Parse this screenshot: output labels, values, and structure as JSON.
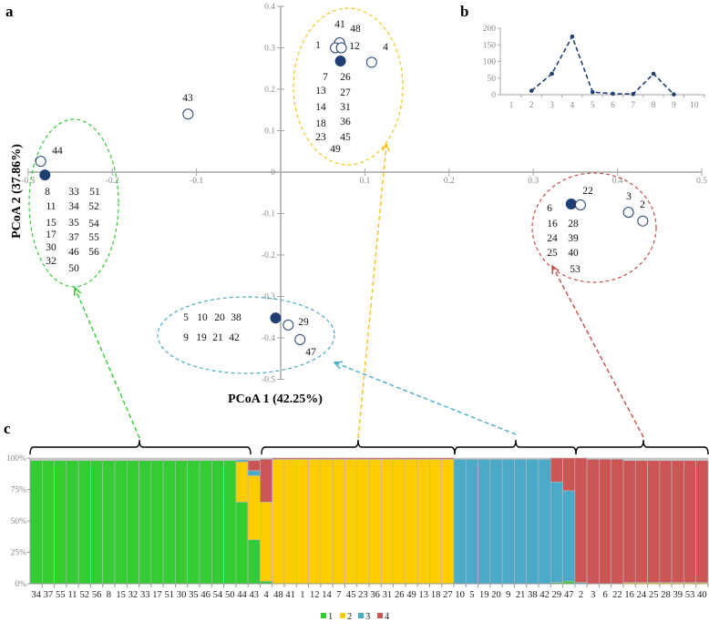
{
  "panel_labels": {
    "a": "a",
    "b": "b",
    "c": "c"
  },
  "colors": {
    "point": "#1f3f73",
    "axis": "#a6a6a6",
    "k1": "#33cc33",
    "k2": "#ffcc00",
    "k3": "#4aaac8",
    "k4": "#cc5555",
    "unassigned": "#c8c8c8",
    "cluster_green": "#33cc33",
    "cluster_yellow": "#f5c518",
    "cluster_red": "#c0504d",
    "cluster_blue": "#4aaac8"
  },
  "chart_data": [
    {
      "type": "scatter",
      "panel": "a",
      "xlabel": "PCoA 1 (42.25%)",
      "ylabel": "PCoA 2 (37.86%)",
      "xlim": [
        -0.3,
        0.5
      ],
      "ylim": [
        -0.5,
        0.4
      ],
      "xticks": [
        "-0.3",
        "-0.2",
        "-0.1",
        "0.1",
        "0.2",
        "0.3",
        "0.4",
        "0.5"
      ],
      "xtick_values": [
        -0.3,
        -0.2,
        -0.1,
        0.1,
        0.2,
        0.3,
        0.4,
        0.5
      ],
      "yticks": [
        "0.4",
        "0.3",
        "0.2",
        "0.1",
        "0",
        "-0.1",
        "-0.2",
        "-0.3",
        "-0.4",
        "-0.5"
      ],
      "ytick_values": [
        0.4,
        0.3,
        0.2,
        0.1,
        0,
        -0.1,
        -0.2,
        -0.3,
        -0.4,
        -0.5
      ],
      "points": [
        {
          "x": -0.285,
          "y": 0.026,
          "filled": false
        },
        {
          "x": -0.28,
          "y": -0.007,
          "filled": true
        },
        {
          "x": -0.11,
          "y": 0.14,
          "filled": false
        },
        {
          "x": 0.07,
          "y": 0.312,
          "filled": false
        },
        {
          "x": 0.065,
          "y": 0.3,
          "filled": false
        },
        {
          "x": 0.072,
          "y": 0.3,
          "filled": false
        },
        {
          "x": 0.071,
          "y": 0.268,
          "filled": true
        },
        {
          "x": 0.108,
          "y": 0.265,
          "filled": false
        },
        {
          "x": 0.345,
          "y": -0.077,
          "filled": true
        },
        {
          "x": 0.356,
          "y": -0.079,
          "filled": false
        },
        {
          "x": 0.413,
          "y": -0.097,
          "filled": false
        },
        {
          "x": 0.43,
          "y": -0.118,
          "filled": false
        },
        {
          "x": -0.006,
          "y": -0.352,
          "filled": true
        },
        {
          "x": 0.009,
          "y": -0.369,
          "filled": false
        },
        {
          "x": 0.023,
          "y": -0.404,
          "filled": false
        }
      ],
      "solo_label": "43",
      "clusters": [
        {
          "name": "green",
          "members": [
            "44",
            "8",
            "33",
            "51",
            "11",
            "34",
            "52",
            "15",
            "35",
            "54",
            "17",
            "37",
            "55",
            "30",
            "46",
            "56",
            "32",
            "50"
          ]
        },
        {
          "name": "yellow",
          "members": [
            "41",
            "48",
            "1",
            "12",
            "4",
            "7",
            "26",
            "13",
            "27",
            "14",
            "31",
            "18",
            "36",
            "23",
            "45",
            "49"
          ]
        },
        {
          "name": "red",
          "members": [
            "22",
            "3",
            "2",
            "6",
            "16",
            "28",
            "24",
            "39",
            "25",
            "40",
            "53"
          ]
        },
        {
          "name": "blue",
          "members": [
            "5",
            "10",
            "20",
            "38",
            "9",
            "19",
            "21",
            "42",
            "29",
            "47"
          ]
        }
      ]
    },
    {
      "type": "line",
      "panel": "b",
      "x": [
        1,
        2,
        3,
        4,
        5,
        6,
        7,
        8,
        9,
        10
      ],
      "xticks": [
        "1",
        "2",
        "3",
        "4",
        "5",
        "6",
        "7",
        "8",
        "9",
        "10"
      ],
      "values": [
        null,
        12,
        63,
        175,
        8,
        3,
        2,
        63,
        1,
        null
      ],
      "ylim": [
        0,
        200
      ],
      "yticks": [
        "0",
        "50",
        "100",
        "150",
        "200"
      ],
      "ytick_values": [
        0,
        50,
        100,
        150,
        200
      ],
      "line_style": "dashed"
    },
    {
      "type": "bar",
      "stacked": true,
      "panel": "c",
      "yticks": [
        "0%",
        "25%",
        "50%",
        "75%",
        "100%"
      ],
      "ytick_values": [
        0,
        25,
        50,
        75,
        100
      ],
      "legend": [
        "1",
        "2",
        "3",
        "4"
      ],
      "legend_placement": "bottom-center",
      "samples": [
        {
          "id": "34",
          "q": [
            98,
            0,
            0,
            0
          ]
        },
        {
          "id": "37",
          "q": [
            98,
            0,
            0,
            0
          ]
        },
        {
          "id": "55",
          "q": [
            98,
            0,
            0,
            0
          ]
        },
        {
          "id": "11",
          "q": [
            98,
            0,
            0,
            0
          ]
        },
        {
          "id": "52",
          "q": [
            98,
            0,
            0,
            0
          ]
        },
        {
          "id": "56",
          "q": [
            98,
            0,
            0,
            0
          ]
        },
        {
          "id": "8",
          "q": [
            98,
            0,
            0,
            0
          ]
        },
        {
          "id": "15",
          "q": [
            98,
            0,
            0,
            0
          ]
        },
        {
          "id": "32",
          "q": [
            98,
            0,
            0,
            0
          ]
        },
        {
          "id": "33",
          "q": [
            98,
            0,
            0,
            0
          ]
        },
        {
          "id": "17",
          "q": [
            98,
            0,
            0,
            0
          ]
        },
        {
          "id": "51",
          "q": [
            98,
            0,
            0,
            0
          ]
        },
        {
          "id": "30",
          "q": [
            98,
            0,
            0,
            0
          ]
        },
        {
          "id": "35",
          "q": [
            98,
            0,
            0,
            0
          ]
        },
        {
          "id": "46",
          "q": [
            98,
            0,
            0,
            0
          ]
        },
        {
          "id": "54",
          "q": [
            98,
            0,
            0,
            0
          ]
        },
        {
          "id": "50",
          "q": [
            98,
            0,
            0,
            0
          ]
        },
        {
          "id": "44",
          "q": [
            65,
            32,
            1.5,
            0
          ]
        },
        {
          "id": "43",
          "q": [
            35,
            51,
            4,
            8
          ]
        },
        {
          "id": "4",
          "q": [
            2,
            63,
            0,
            34
          ]
        },
        {
          "id": "48",
          "q": [
            0,
            99,
            0,
            1
          ]
        },
        {
          "id": "41",
          "q": [
            0,
            99,
            0,
            1
          ]
        },
        {
          "id": "1",
          "q": [
            0,
            99,
            0,
            1
          ]
        },
        {
          "id": "12",
          "q": [
            0,
            99,
            0,
            1
          ]
        },
        {
          "id": "14",
          "q": [
            0,
            99,
            0,
            1
          ]
        },
        {
          "id": "7",
          "q": [
            0,
            99,
            0,
            1
          ]
        },
        {
          "id": "45",
          "q": [
            0,
            99,
            0,
            1
          ]
        },
        {
          "id": "23",
          "q": [
            0,
            99,
            0,
            1
          ]
        },
        {
          "id": "36",
          "q": [
            0,
            99,
            0,
            1
          ]
        },
        {
          "id": "31",
          "q": [
            0,
            99,
            0,
            1
          ]
        },
        {
          "id": "26",
          "q": [
            0,
            99,
            0,
            1
          ]
        },
        {
          "id": "49",
          "q": [
            0,
            99,
            0,
            1
          ]
        },
        {
          "id": "13",
          "q": [
            0,
            99,
            0,
            1
          ]
        },
        {
          "id": "18",
          "q": [
            0,
            99,
            0,
            1
          ]
        },
        {
          "id": "27",
          "q": [
            0,
            99,
            0,
            1
          ]
        },
        {
          "id": "10",
          "q": [
            0,
            0,
            99,
            0
          ]
        },
        {
          "id": "5",
          "q": [
            0,
            0,
            99,
            0
          ]
        },
        {
          "id": "19",
          "q": [
            0,
            0,
            99,
            0
          ]
        },
        {
          "id": "20",
          "q": [
            0,
            0,
            99,
            0
          ]
        },
        {
          "id": "9",
          "q": [
            0,
            0,
            99,
            0
          ]
        },
        {
          "id": "21",
          "q": [
            0,
            0,
            99,
            0
          ]
        },
        {
          "id": "38",
          "q": [
            0,
            0,
            99,
            0
          ]
        },
        {
          "id": "42",
          "q": [
            0,
            0,
            99,
            0
          ]
        },
        {
          "id": "29",
          "q": [
            1,
            0,
            80,
            19
          ]
        },
        {
          "id": "47",
          "q": [
            2,
            0,
            72,
            26
          ]
        },
        {
          "id": "2",
          "q": [
            0,
            0,
            1,
            99
          ]
        },
        {
          "id": "3",
          "q": [
            0,
            0,
            0,
            99
          ]
        },
        {
          "id": "6",
          "q": [
            0,
            0,
            0,
            99
          ]
        },
        {
          "id": "22",
          "q": [
            0,
            0,
            0,
            99
          ]
        },
        {
          "id": "16",
          "q": [
            0,
            1,
            0,
            97
          ]
        },
        {
          "id": "24",
          "q": [
            0,
            1,
            0,
            97
          ]
        },
        {
          "id": "25",
          "q": [
            0,
            1,
            0,
            97
          ]
        },
        {
          "id": "28",
          "q": [
            0,
            1,
            0,
            97
          ]
        },
        {
          "id": "39",
          "q": [
            0,
            1,
            0,
            97
          ]
        },
        {
          "id": "53",
          "q": [
            0,
            1,
            0,
            97
          ]
        },
        {
          "id": "40",
          "q": [
            0,
            1,
            0,
            97
          ]
        }
      ]
    }
  ]
}
